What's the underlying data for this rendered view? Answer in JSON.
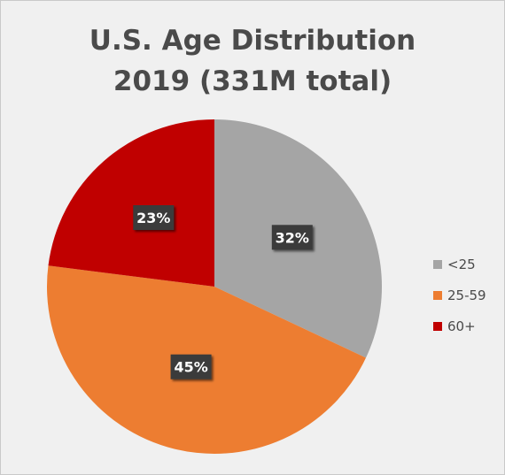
{
  "chart_data": {
    "type": "pie",
    "title_lines": [
      "U.S. Age Distribution",
      "2019 (331M total)"
    ],
    "categories": [
      "<25",
      "25-59",
      "60+"
    ],
    "values": [
      32,
      45,
      23
    ],
    "data_labels": [
      "32%",
      "45%",
      "23%"
    ],
    "colors": [
      "#a5a5a5",
      "#ed7d31",
      "#c00000"
    ],
    "legend_position": "right",
    "start_angle": "top, clockwise"
  }
}
